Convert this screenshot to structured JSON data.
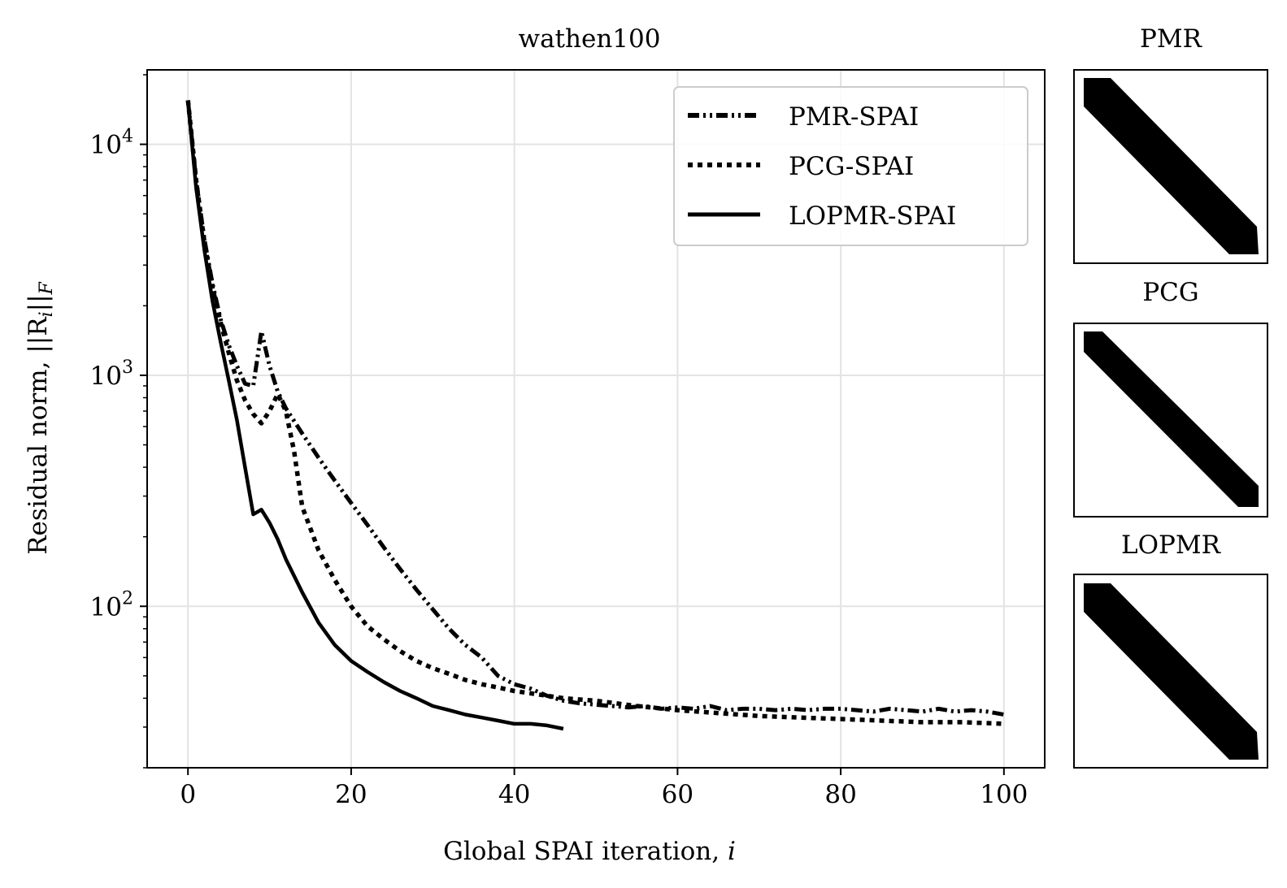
{
  "chart_data": [
    {
      "type": "line",
      "title": "wathen100",
      "xlabel": "Global SPAI iteration, i",
      "xlabel_text": "Global SPAI iteration, ",
      "xlabel_var": "i",
      "ylabel": "Residual norm, ||R_i||_F",
      "ylabel_text": "Residual norm, ",
      "ylabel_math": "||R",
      "ylabel_sub": "i",
      "ylabel_math2": "||",
      "ylabel_sub2": "F",
      "xlim": [
        -5,
        105
      ],
      "ylim": [
        20,
        21000
      ],
      "yscale": "log",
      "grid": true,
      "xticks": [
        0,
        20,
        40,
        60,
        80,
        100
      ],
      "xtick_labels": [
        "0",
        "20",
        "40",
        "60",
        "80",
        "100"
      ],
      "yticks": [
        100,
        1000,
        10000
      ],
      "ytick_base": "10",
      "ytick_exponents": [
        "2",
        "3",
        "4"
      ],
      "legend_position": "top-right",
      "series": [
        {
          "name": "PMR-SPAI",
          "style": "dashdot",
          "x": [
            0,
            1,
            2,
            3,
            4,
            5,
            6,
            7,
            8,
            9,
            10,
            11,
            12,
            14,
            16,
            18,
            20,
            22,
            24,
            26,
            28,
            30,
            32,
            34,
            36,
            38,
            40,
            42,
            44,
            46,
            48,
            50,
            52,
            54,
            56,
            58,
            60,
            62,
            64,
            66,
            68,
            70,
            72,
            74,
            76,
            78,
            80,
            82,
            84,
            86,
            88,
            90,
            92,
            94,
            96,
            98,
            100
          ],
          "values": [
            15500,
            7000,
            3900,
            2500,
            1750,
            1350,
            1100,
            920,
            900,
            1550,
            1100,
            850,
            720,
            560,
            440,
            350,
            280,
            225,
            180,
            145,
            118,
            97,
            80,
            68,
            60,
            50,
            46,
            44,
            41,
            39,
            38,
            37.5,
            37,
            36.5,
            37,
            36,
            36.5,
            36,
            37,
            35.5,
            36,
            36,
            35.5,
            36,
            35.5,
            36,
            36,
            35.5,
            35,
            36,
            35.5,
            35,
            36,
            35,
            35.5,
            35,
            34
          ]
        },
        {
          "name": "PCG-SPAI",
          "style": "dotted",
          "x": [
            0,
            1,
            2,
            3,
            4,
            5,
            6,
            7,
            8,
            9,
            10,
            11,
            12,
            13,
            14,
            16,
            18,
            20,
            22,
            24,
            26,
            28,
            30,
            32,
            34,
            36,
            38,
            40,
            42,
            44,
            46,
            48,
            50,
            55,
            60,
            65,
            70,
            75,
            80,
            85,
            90,
            95,
            100
          ],
          "values": [
            15500,
            7000,
            3800,
            2400,
            1700,
            1250,
            950,
            780,
            680,
            620,
            700,
            830,
            700,
            470,
            270,
            175,
            130,
            100,
            82,
            72,
            64,
            58,
            54,
            51,
            48,
            46,
            44.5,
            43,
            42,
            41,
            40,
            39.5,
            39,
            37,
            35.5,
            34.5,
            33.5,
            33,
            32.5,
            32,
            31.5,
            31.5,
            31
          ]
        },
        {
          "name": "LOPMR-SPAI",
          "style": "solid",
          "x": [
            0,
            1,
            2,
            3,
            4,
            5,
            6,
            7,
            8,
            9,
            10,
            11,
            12,
            14,
            16,
            18,
            20,
            22,
            24,
            26,
            28,
            30,
            32,
            34,
            36,
            38,
            40,
            42,
            44,
            46
          ],
          "values": [
            15500,
            6500,
            3500,
            2100,
            1400,
            950,
            640,
            400,
            250,
            262,
            230,
            195,
            160,
            115,
            85,
            68,
            58,
            52,
            47,
            43,
            40,
            37,
            35.5,
            34,
            33,
            32,
            31,
            31,
            30.5,
            29.5
          ]
        }
      ]
    },
    {
      "type": "heatmap",
      "title": "PMR",
      "description_band": "banded sparsity pattern"
    },
    {
      "type": "heatmap",
      "title": "PCG",
      "description_band": "banded sparsity pattern"
    },
    {
      "type": "heatmap",
      "title": "LOPMR",
      "description_band": "banded sparsity pattern"
    }
  ],
  "colors": {
    "line": "#000000",
    "grid": "#e3e3e3",
    "legend_border": "#cccccc"
  }
}
